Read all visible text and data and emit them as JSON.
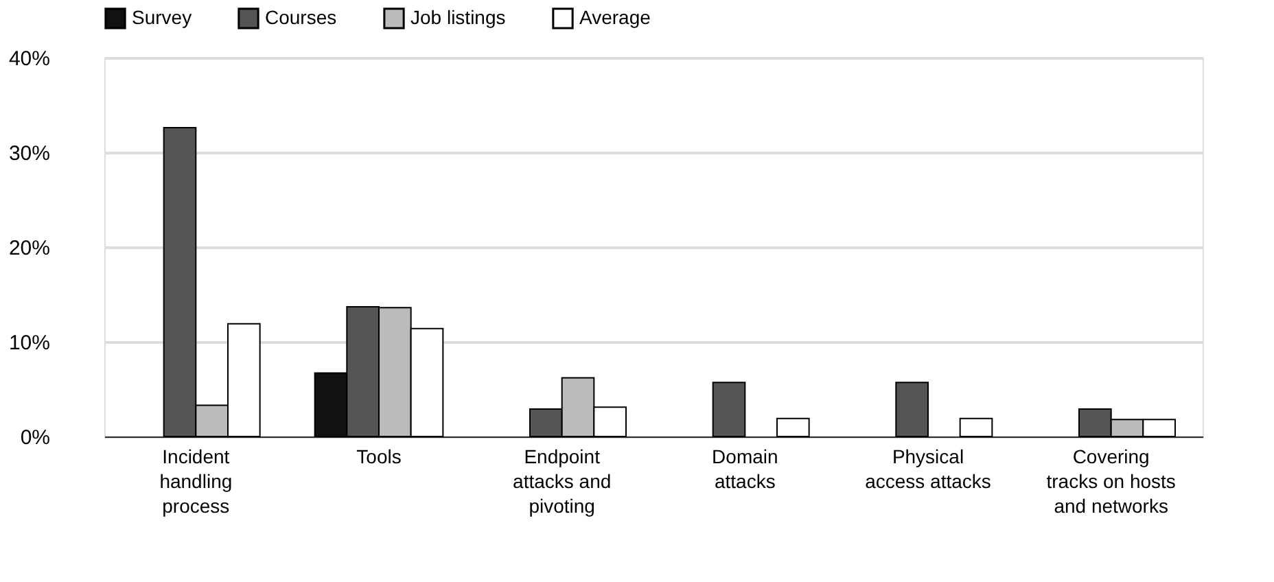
{
  "chart_data": {
    "type": "bar",
    "categories": [
      "Incident\nhandling\nprocess",
      "Tools",
      "Endpoint\nattacks and\npivoting",
      "Domain\nattacks",
      "Physical\naccess attacks",
      "Covering\ntracks on hosts\nand networks"
    ],
    "series": [
      {
        "name": "Survey",
        "color": "#111111",
        "values": [
          null,
          6.7,
          null,
          null,
          null,
          null
        ]
      },
      {
        "name": "Courses",
        "color": "#555555",
        "values": [
          32.6,
          13.7,
          2.9,
          5.7,
          5.7,
          2.9
        ]
      },
      {
        "name": "Job listings",
        "color": "#bbbbbb",
        "values": [
          3.3,
          13.6,
          6.2,
          null,
          null,
          1.8
        ]
      },
      {
        "name": "Average",
        "color": "#ffffff",
        "values": [
          11.9,
          11.4,
          3.1,
          1.9,
          1.9,
          1.8
        ]
      }
    ],
    "ylim": [
      0,
      40
    ],
    "yticks": [
      {
        "value": 0,
        "label": "0%"
      },
      {
        "value": 10,
        "label": "10%"
      },
      {
        "value": 20,
        "label": "20%"
      },
      {
        "value": 30,
        "label": "30%"
      },
      {
        "value": 40,
        "label": "40%"
      }
    ],
    "grid": "y",
    "legend": "top"
  }
}
